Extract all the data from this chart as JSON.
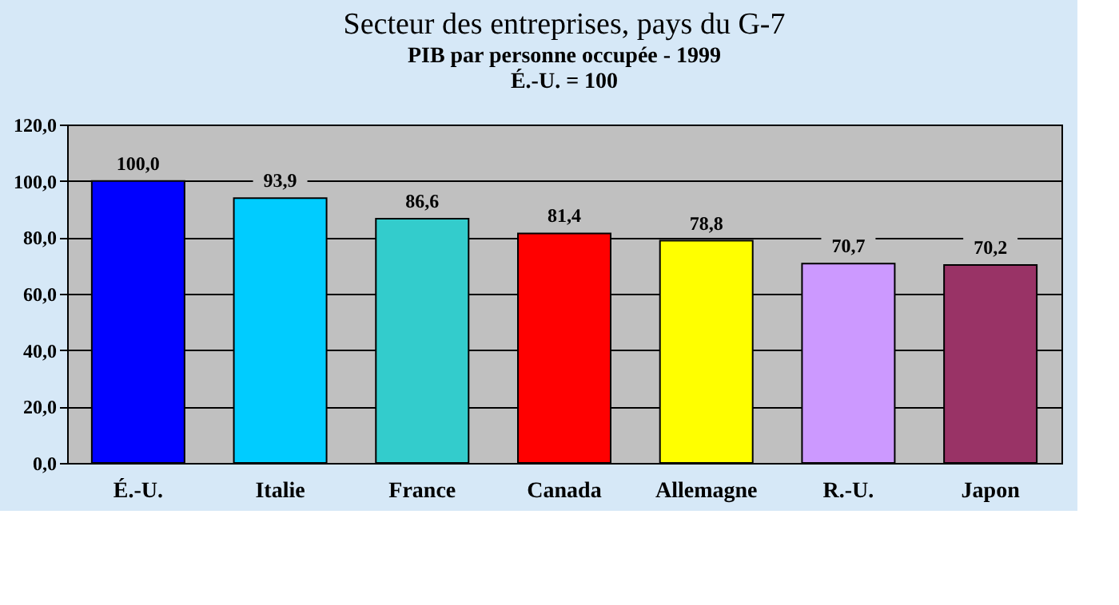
{
  "chart_data": {
    "type": "bar",
    "title": "Secteur des entreprises, pays du G-7",
    "subtitle": "PIB par personne occupée - 1999",
    "annotations": [
      "É.-U. = 100"
    ],
    "categories": [
      "É.-U.",
      "Italie",
      "France",
      "Canada",
      "Allemagne",
      "R.-U.",
      "Japon"
    ],
    "values": [
      100.0,
      93.9,
      86.6,
      81.4,
      78.8,
      70.7,
      70.2
    ],
    "colors": [
      "#0000ff",
      "#00ccff",
      "#33cccc",
      "#ff0000",
      "#ffff00",
      "#cc99ff",
      "#993366"
    ],
    "value_labels": [
      "100,0",
      "93,9",
      "86,6",
      "81,4",
      "78,8",
      "70,7",
      "70,2"
    ],
    "ylim": [
      0,
      120
    ],
    "yticks": [
      {
        "value": 0,
        "label": "0,0"
      },
      {
        "value": 20,
        "label": "20,0"
      },
      {
        "value": 40,
        "label": "40,0"
      },
      {
        "value": 60,
        "label": "60,0"
      },
      {
        "value": 80,
        "label": "80,0"
      },
      {
        "value": 100,
        "label": "100,0"
      },
      {
        "value": 120,
        "label": "120,0"
      }
    ],
    "grid": "y"
  }
}
